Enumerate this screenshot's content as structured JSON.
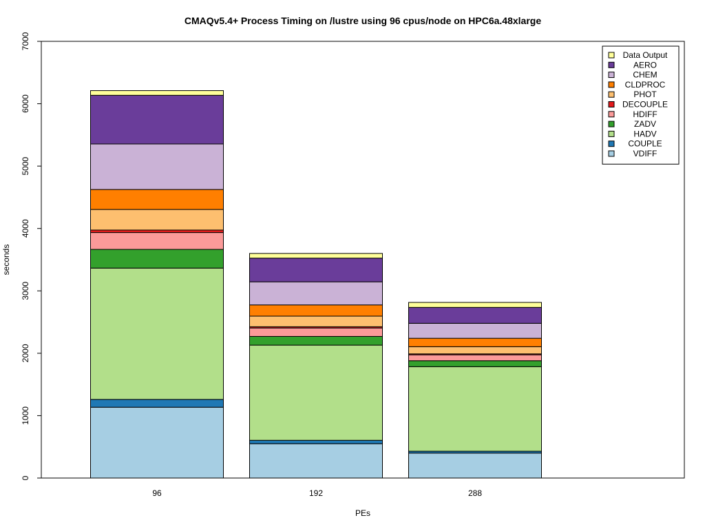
{
  "chart_data": {
    "type": "bar",
    "stacked": true,
    "title": "CMAQv5.4+ Process Timing on /lustre using 96 cpus/node on HPC6a.48xlarge",
    "xlabel": "PEs",
    "ylabel": "seconds",
    "ylim": [
      0,
      7000
    ],
    "yticks": [
      0,
      1000,
      2000,
      3000,
      4000,
      5000,
      6000,
      7000
    ],
    "grid": false,
    "legend_position": "top-right",
    "categories": [
      "96",
      "192",
      "288"
    ],
    "series": [
      {
        "name": "VDIFF",
        "color": "#A6CEE3",
        "values": [
          1135,
          550,
          400
        ]
      },
      {
        "name": "COUPLE",
        "color": "#1F78B4",
        "values": [
          125,
          55,
          30
        ]
      },
      {
        "name": "HADV",
        "color": "#B2DF8A",
        "values": [
          2105,
          1525,
          1355
        ]
      },
      {
        "name": "ZADV",
        "color": "#33A02C",
        "values": [
          300,
          140,
          95
        ]
      },
      {
        "name": "HDIFF",
        "color": "#FB9A99",
        "values": [
          270,
          135,
          95
        ]
      },
      {
        "name": "DECOUPLE",
        "color": "#E31A1C",
        "values": [
          40,
          20,
          15
        ]
      },
      {
        "name": "PHOT",
        "color": "#FDBF6F",
        "values": [
          330,
          170,
          115
        ]
      },
      {
        "name": "CLDPROC",
        "color": "#FF7F00",
        "values": [
          320,
          180,
          135
        ]
      },
      {
        "name": "CHEM",
        "color": "#CAB2D6",
        "values": [
          730,
          370,
          240
        ]
      },
      {
        "name": "AERO",
        "color": "#6A3D9A",
        "values": [
          780,
          380,
          255
        ]
      },
      {
        "name": "Data Output",
        "color": "#FFFF99",
        "values": [
          75,
          75,
          80
        ]
      }
    ]
  }
}
